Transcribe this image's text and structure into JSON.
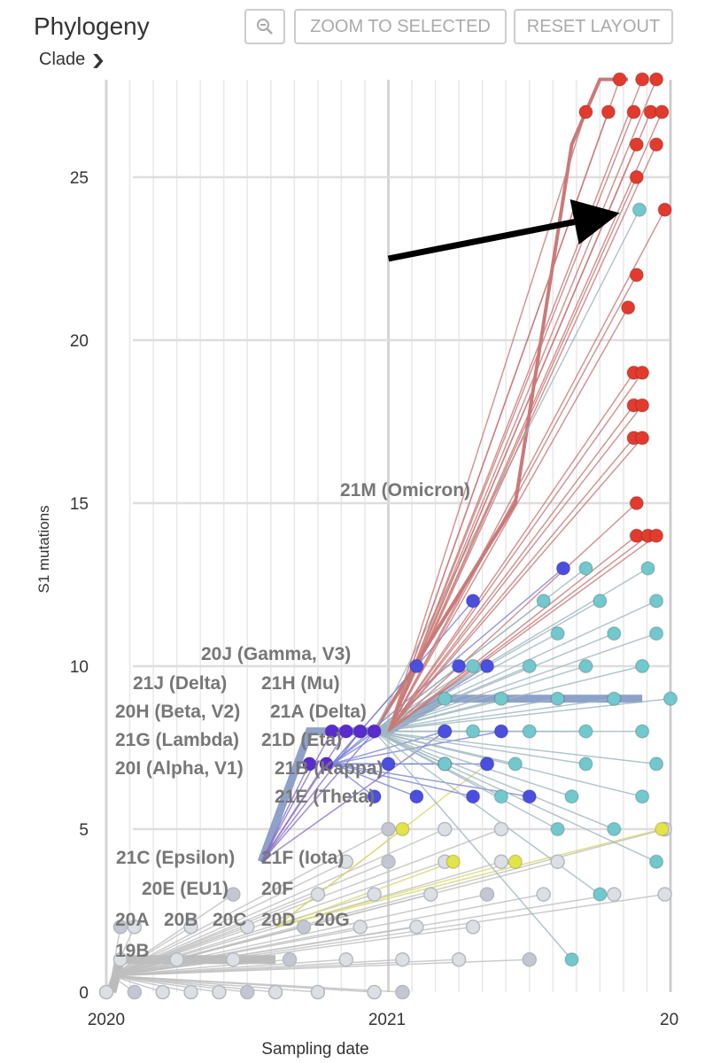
{
  "header": {
    "title": "Phylogeny",
    "color_by": "Clade",
    "zoom_out_icon": "magnifier-minus-icon",
    "zoom_to_selected": "ZOOM TO SELECTED",
    "reset_layout": "RESET LAYOUT"
  },
  "chart_data": {
    "type": "scatter",
    "subtype": "phylogenetic tree (clock/mutation layout)",
    "xlabel": "Sampling date",
    "ylabel": "S1 mutations",
    "x_ticks": [
      "2020",
      "2021",
      "20"
    ],
    "y_ticks": [
      "0",
      "5",
      "10",
      "15",
      "20",
      "25"
    ],
    "xlim": [
      2020.0,
      2022.0
    ],
    "ylim": [
      0,
      28
    ],
    "grid": true,
    "colors": {
      "omicron": "#e23b2e",
      "omicron_branch": "#c97a78",
      "delta": "#72c8cc",
      "blue": "#4b4fe0",
      "purple": "#5a2bd0",
      "grey": "#dcdfe4",
      "grey_branch": "#bfbfbf",
      "yellow": "#e3e34a"
    },
    "clade_labels": [
      "21M (Omicron)",
      "20J (Gamma, V3)",
      "21J (Delta)",
      "21H (Mu)",
      "20H (Beta, V2)",
      "21A (Delta)",
      "21G (Lambda)",
      "21D (Eta)",
      "20I (Alpha, V1)",
      "21B (Kappa)",
      "21E (Theta)",
      "21C (Epsilon)",
      "21F (Iota)",
      "20E (EU1)",
      "20F",
      "20A",
      "20B",
      "20C",
      "20D",
      "20G",
      "19B"
    ],
    "groups": [
      {
        "clade": "omicron",
        "root": [
          2021.0,
          8
        ],
        "tips": [
          [
            2021.82,
            28
          ],
          [
            2021.9,
            28
          ],
          [
            2021.95,
            28
          ],
          [
            2021.7,
            27
          ],
          [
            2021.78,
            27
          ],
          [
            2021.87,
            27
          ],
          [
            2021.93,
            27
          ],
          [
            2021.97,
            27
          ],
          [
            2021.88,
            26
          ],
          [
            2021.95,
            26
          ],
          [
            2021.88,
            25
          ],
          [
            2021.98,
            24
          ],
          [
            2021.88,
            22
          ],
          [
            2021.85,
            21
          ],
          [
            2021.87,
            19
          ],
          [
            2021.9,
            19
          ],
          [
            2021.87,
            18
          ],
          [
            2021.9,
            18
          ],
          [
            2021.87,
            17
          ],
          [
            2021.9,
            17
          ],
          [
            2021.88,
            15
          ],
          [
            2021.88,
            14
          ],
          [
            2021.92,
            14
          ],
          [
            2021.95,
            14
          ]
        ]
      },
      {
        "clade": "delta",
        "root": [
          2020.95,
          8
        ],
        "tips": [
          [
            2021.89,
            24
          ],
          [
            2021.7,
            13
          ],
          [
            2021.92,
            13
          ],
          [
            2021.55,
            12
          ],
          [
            2021.75,
            12
          ],
          [
            2021.95,
            12
          ],
          [
            2021.6,
            11
          ],
          [
            2021.8,
            11
          ],
          [
            2021.95,
            11
          ],
          [
            2021.3,
            10
          ],
          [
            2021.5,
            10
          ],
          [
            2021.7,
            10
          ],
          [
            2021.9,
            10
          ],
          [
            2021.2,
            9
          ],
          [
            2021.4,
            9
          ],
          [
            2021.6,
            9
          ],
          [
            2021.8,
            9
          ],
          [
            2022.0,
            9
          ],
          [
            2021.3,
            8
          ],
          [
            2021.5,
            8
          ],
          [
            2021.7,
            8
          ],
          [
            2021.9,
            8
          ],
          [
            2021.2,
            7
          ],
          [
            2021.45,
            7
          ],
          [
            2021.7,
            7
          ],
          [
            2021.95,
            7
          ],
          [
            2021.4,
            6
          ],
          [
            2021.65,
            6
          ],
          [
            2021.9,
            6
          ],
          [
            2021.6,
            5
          ],
          [
            2021.8,
            5
          ],
          [
            2021.75,
            3
          ],
          [
            2021.95,
            4
          ],
          [
            2021.65,
            1
          ]
        ]
      },
      {
        "clade": "blue",
        "root": [
          2020.8,
          7
        ],
        "tips": [
          [
            2021.3,
            12
          ],
          [
            2021.62,
            13
          ],
          [
            2021.1,
            10
          ],
          [
            2021.25,
            10
          ],
          [
            2021.35,
            10
          ],
          [
            2021.2,
            8
          ],
          [
            2021.4,
            8
          ],
          [
            2021.0,
            7
          ],
          [
            2021.2,
            7
          ],
          [
            2021.35,
            7
          ],
          [
            2020.95,
            6
          ],
          [
            2021.1,
            6
          ],
          [
            2021.3,
            6
          ],
          [
            2021.5,
            6
          ]
        ]
      },
      {
        "clade": "purple",
        "root": [
          2020.55,
          4
        ],
        "tips": [
          [
            2020.8,
            8
          ],
          [
            2020.85,
            8
          ],
          [
            2020.9,
            8
          ],
          [
            2020.95,
            8
          ],
          [
            2021.2,
            8
          ],
          [
            2020.72,
            7
          ],
          [
            2020.78,
            7
          ]
        ]
      },
      {
        "clade": "grey",
        "root": [
          2020.02,
          0.5
        ],
        "tips": [
          [
            2020.0,
            0
          ],
          [
            2020.1,
            0
          ],
          [
            2020.2,
            0
          ],
          [
            2020.3,
            0
          ],
          [
            2020.4,
            0
          ],
          [
            2020.5,
            0
          ],
          [
            2020.6,
            0
          ],
          [
            2020.75,
            0
          ],
          [
            2020.95,
            0
          ],
          [
            2021.05,
            0
          ],
          [
            2020.05,
            1
          ],
          [
            2020.25,
            1
          ],
          [
            2020.45,
            1
          ],
          [
            2020.65,
            1
          ],
          [
            2020.85,
            1
          ],
          [
            2021.05,
            1
          ],
          [
            2021.25,
            1
          ],
          [
            2021.5,
            1
          ],
          [
            2020.1,
            2
          ],
          [
            2020.3,
            2
          ],
          [
            2020.5,
            2
          ],
          [
            2020.7,
            2
          ],
          [
            2020.9,
            2
          ],
          [
            2021.1,
            2
          ],
          [
            2021.3,
            2
          ],
          [
            2020.45,
            3
          ],
          [
            2020.75,
            3
          ],
          [
            2020.95,
            3
          ],
          [
            2021.15,
            3
          ],
          [
            2021.35,
            3
          ],
          [
            2021.55,
            3
          ],
          [
            2021.8,
            3
          ],
          [
            2020.85,
            4
          ],
          [
            2021.0,
            4
          ],
          [
            2021.2,
            4
          ],
          [
            2021.4,
            4
          ],
          [
            2021.6,
            4
          ],
          [
            2021.0,
            5
          ],
          [
            2021.2,
            5
          ],
          [
            2021.4,
            5
          ],
          [
            2021.98,
            5
          ],
          [
            2020.05,
            2
          ],
          [
            2021.98,
            3
          ]
        ]
      },
      {
        "clade": "yellow",
        "root": [
          2020.6,
          2
        ],
        "tips": [
          [
            2021.05,
            5
          ],
          [
            2021.23,
            4
          ],
          [
            2021.45,
            4
          ],
          [
            2021.97,
            5
          ],
          [
            2021.35,
            7
          ]
        ]
      }
    ],
    "annotation": {
      "type": "arrow",
      "from": [
        2021.0,
        22.5
      ],
      "to": [
        2021.82,
        23.9
      ],
      "color": "#000000"
    }
  }
}
